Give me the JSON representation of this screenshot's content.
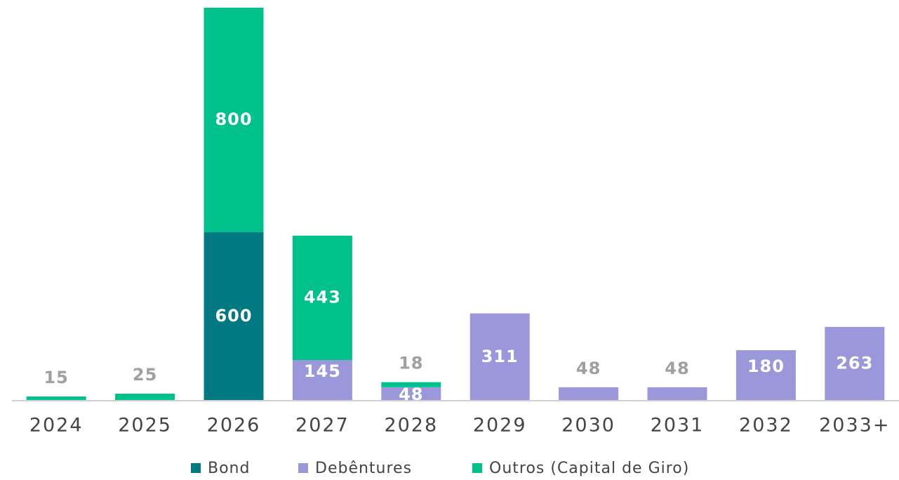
{
  "chart_data": {
    "type": "stacked_bar",
    "categories": [
      "2024",
      "2025",
      "2026",
      "2027",
      "2028",
      "2029",
      "2030",
      "2031",
      "2032",
      "2033+"
    ],
    "series": [
      {
        "name": "Bond",
        "color": "#007a80",
        "values": [
          null,
          null,
          600,
          null,
          null,
          null,
          null,
          null,
          null,
          null
        ]
      },
      {
        "name": "Debêntures",
        "color": "#9b97db",
        "values": [
          null,
          null,
          null,
          145,
          48,
          311,
          48,
          48,
          180,
          263
        ]
      },
      {
        "name": "Outros (Capital de Giro)",
        "color": "#00c08b",
        "values": [
          15,
          25,
          800,
          443,
          18,
          null,
          null,
          null,
          null,
          null
        ]
      }
    ],
    "ylim": [
      0,
      1400
    ]
  }
}
